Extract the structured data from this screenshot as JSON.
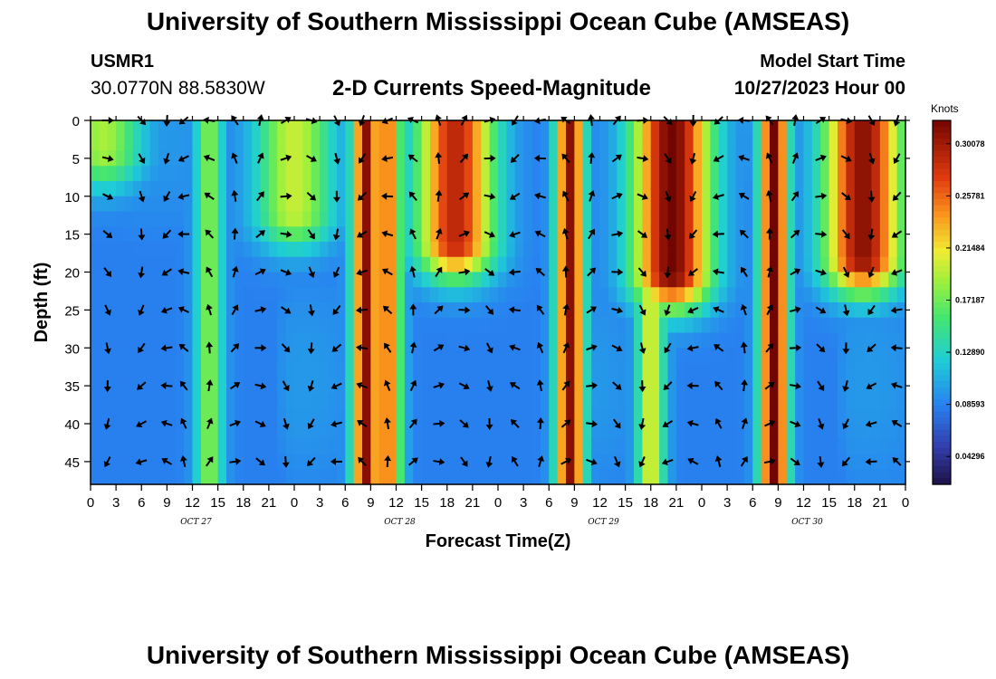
{
  "header": {
    "title": "University of Southern Mississippi Ocean Cube (AMSEAS)",
    "station_id": "USMR1",
    "coords": "30.0770N  88.5830W",
    "subtitle": "2-D Currents Speed-Magnitude",
    "model_start_label": "Model Start Time",
    "model_start_value": "10/27/2023 Hour 00"
  },
  "footer": {
    "title": "University of Southern Mississippi Ocean Cube (AMSEAS)"
  },
  "chart_data": {
    "type": "heatmap",
    "title": "2-D Currents Speed-Magnitude",
    "xlabel": "Forecast Time(Z)",
    "ylabel": "Depth (ft)",
    "x_unit": "forecast hour",
    "xlim": [
      0,
      96
    ],
    "ylim": [
      48,
      0
    ],
    "x_tick_labels": [
      "0",
      "3",
      "6",
      "9",
      "12",
      "15",
      "18",
      "21",
      "0",
      "3",
      "6",
      "9",
      "12",
      "15",
      "18",
      "21",
      "0",
      "3",
      "6",
      "9",
      "12",
      "15",
      "18",
      "21",
      "0",
      "3",
      "6",
      "9",
      "12",
      "15",
      "18",
      "21",
      "0"
    ],
    "day_labels": [
      "OCT 27",
      "OCT 28",
      "OCT 29",
      "OCT 30"
    ],
    "y_ticks": [
      0,
      5,
      10,
      15,
      20,
      25,
      30,
      35,
      40,
      45
    ],
    "colorbar": {
      "unit": "Knots",
      "ticks": [
        "0.30078",
        "0.25781",
        "0.21484",
        "0.17187",
        "0.12890",
        "0.08593",
        "0.04296"
      ],
      "range": [
        0.02,
        0.32
      ]
    },
    "speed_hotspots_knots": [
      {
        "hour": 1.5,
        "depth_top": 0,
        "depth_bottom": 4,
        "speed": 0.19
      },
      {
        "hour": 14,
        "depth_top": 0,
        "depth_bottom": 48,
        "speed": 0.18
      },
      {
        "hour": 24,
        "depth_top": 0,
        "depth_bottom": 12,
        "speed": 0.2
      },
      {
        "hour": 32.5,
        "depth_top": 0,
        "depth_bottom": 48,
        "speed": 0.31
      },
      {
        "hour": 35,
        "depth_top": 0,
        "depth_bottom": 48,
        "speed": 0.26
      },
      {
        "hour": 43,
        "depth_top": 0,
        "depth_bottom": 16,
        "speed": 0.29
      },
      {
        "hour": 56.5,
        "depth_top": 0,
        "depth_bottom": 48,
        "speed": 0.31
      },
      {
        "hour": 66,
        "depth_top": 0,
        "depth_bottom": 48,
        "speed": 0.21
      },
      {
        "hour": 68.5,
        "depth_top": 0,
        "depth_bottom": 20,
        "speed": 0.32
      },
      {
        "hour": 80.5,
        "depth_top": 0,
        "depth_bottom": 48,
        "speed": 0.32
      },
      {
        "hour": 91,
        "depth_top": 0,
        "depth_bottom": 18,
        "speed": 0.31
      }
    ],
    "arrow_depths_ft": [
      0,
      5,
      10,
      15,
      20,
      25,
      30,
      35,
      40,
      45
    ],
    "arrow_hours": [
      2,
      6,
      9,
      11,
      14,
      17,
      20,
      23,
      26,
      29,
      32,
      35,
      38,
      41,
      44,
      47,
      50,
      53,
      56,
      59,
      62,
      65,
      68,
      71,
      74,
      77,
      80,
      83,
      86,
      89,
      92,
      95
    ]
  }
}
